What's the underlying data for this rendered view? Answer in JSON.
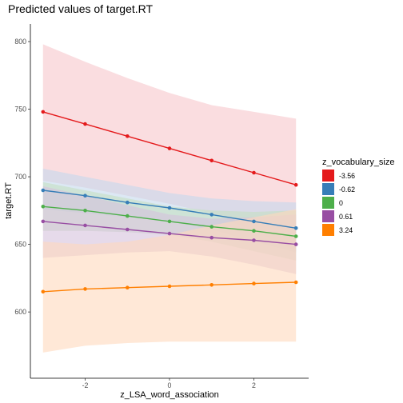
{
  "chart_data": {
    "type": "line",
    "title": "Predicted values of target.RT",
    "xlabel": "z_LSA_word_association",
    "ylabel": "target.RT",
    "xlim": [
      -3.3,
      3.3
    ],
    "ylim": [
      551,
      813
    ],
    "x_ticks": [
      -2,
      0,
      2
    ],
    "x_tick_labels": [
      "-2",
      "0",
      "2"
    ],
    "y_ticks": [
      600,
      650,
      700,
      750,
      800
    ],
    "y_tick_labels": [
      "600",
      "650",
      "700",
      "750",
      "800"
    ],
    "grid": false,
    "legend_title": "z_vocabulary_size",
    "legend_position": "right",
    "x": [
      -3,
      -2,
      -1,
      0,
      1,
      2,
      3
    ],
    "series": [
      {
        "name": "-3.56",
        "color": "#e41a1c",
        "values": [
          748,
          739,
          730,
          721,
          712,
          703,
          694
        ],
        "ci_lower": [
          697,
          692,
          686,
          680,
          673,
          660,
          645
        ],
        "ci_upper": [
          798,
          785,
          773,
          762,
          753,
          748,
          743
        ]
      },
      {
        "name": "-0.62",
        "color": "#377eb8",
        "values": [
          690,
          686,
          681,
          677,
          672,
          667,
          662
        ],
        "ci_lower": [
          676,
          673,
          670,
          667,
          661,
          652,
          644
        ],
        "ci_upper": [
          706,
          700,
          694,
          688,
          684,
          682,
          681
        ]
      },
      {
        "name": "0",
        "color": "#4daf4a",
        "values": [
          678,
          675,
          671,
          667,
          663,
          660,
          656
        ],
        "ci_lower": [
          660,
          660,
          659,
          657,
          652,
          645,
          638
        ],
        "ci_upper": [
          696,
          690,
          684,
          678,
          675,
          674,
          675
        ]
      },
      {
        "name": "0.61",
        "color": "#984ea3",
        "values": [
          667,
          664,
          661,
          658,
          655,
          653,
          650
        ],
        "ci_lower": [
          640,
          642,
          644,
          645,
          641,
          635,
          628
        ],
        "ci_upper": [
          693,
          686,
          679,
          672,
          669,
          670,
          672
        ]
      },
      {
        "name": "3.24",
        "color": "#ff7f00",
        "values": [
          615,
          617,
          618,
          619,
          620,
          621,
          622
        ],
        "ci_lower": [
          570,
          575,
          577,
          578,
          578,
          578,
          578
        ],
        "ci_upper": [
          652,
          650,
          652,
          657,
          664,
          670,
          676
        ]
      }
    ],
    "series_band_colors": [
      "#f7c6cb",
      "#c5d8ec",
      "#c4dfc1",
      "#d6c1dc",
      "#ffd9bc"
    ]
  }
}
